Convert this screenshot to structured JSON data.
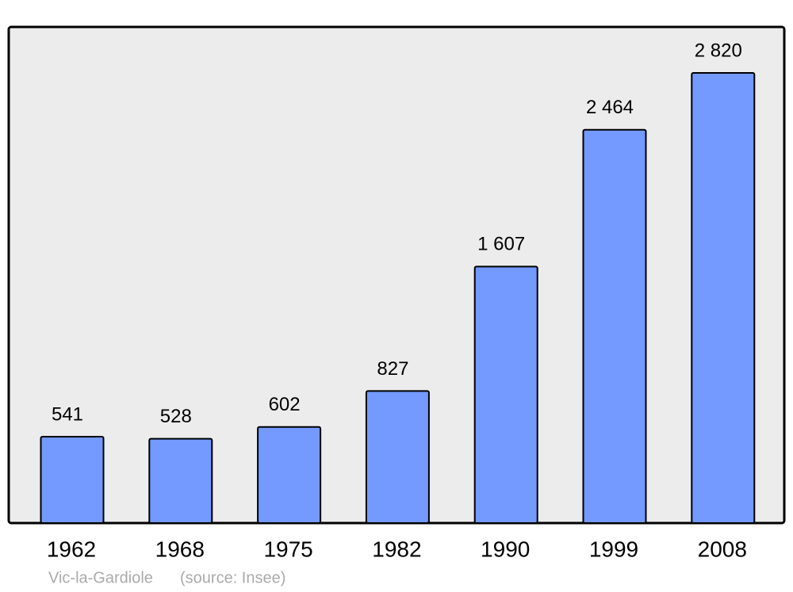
{
  "chart_data": {
    "type": "bar",
    "title": "Vic-la-Gardiole",
    "source": "(source: Insee)",
    "categories": [
      "1962",
      "1968",
      "1975",
      "1982",
      "1990",
      "1999",
      "2008"
    ],
    "values": [
      541,
      528,
      602,
      827,
      1607,
      2464,
      2820
    ],
    "value_labels": [
      "541",
      "528",
      "602",
      "827",
      "1 607",
      "2 464",
      "2 820"
    ],
    "color": "#7499ff"
  }
}
